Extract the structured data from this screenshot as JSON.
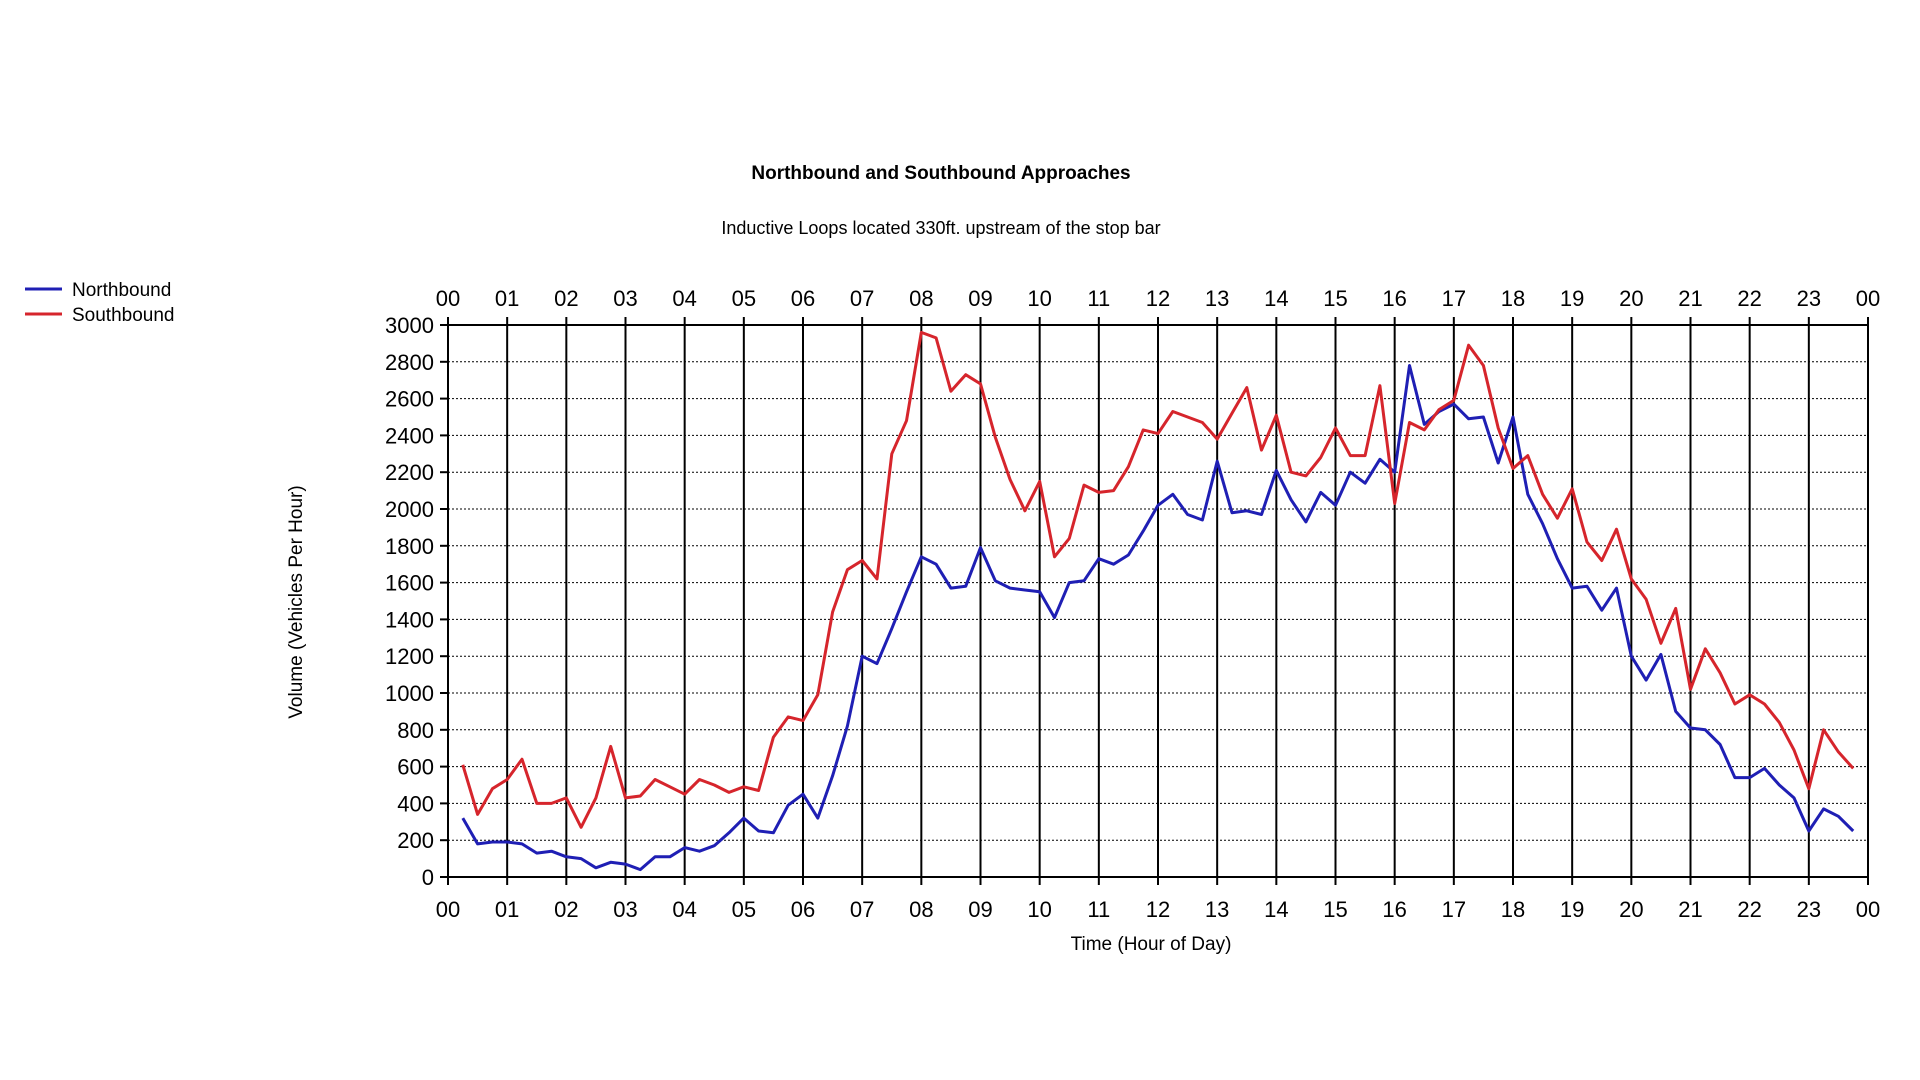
{
  "chart_data": {
    "type": "line",
    "title": "Northbound and Southbound Approaches",
    "subtitle": "Inductive Loops located 330ft. upstream of the stop bar",
    "xlabel": "Time (Hour of Day)",
    "ylabel": "Volume (Vehicles Per Hour)",
    "xlim": [
      0,
      24
    ],
    "ylim": [
      0,
      3000
    ],
    "x_tick_labels": [
      "00",
      "01",
      "02",
      "03",
      "04",
      "05",
      "06",
      "07",
      "08",
      "09",
      "10",
      "11",
      "12",
      "13",
      "14",
      "15",
      "16",
      "17",
      "18",
      "19",
      "20",
      "21",
      "22",
      "23",
      "00"
    ],
    "y_ticks": [
      0,
      200,
      400,
      600,
      800,
      1000,
      1200,
      1400,
      1600,
      1800,
      2000,
      2200,
      2400,
      2600,
      2800,
      3000
    ],
    "grid": true,
    "legend_position": "top-left",
    "colors": {
      "northbound": "#1f1fb4",
      "southbound": "#d6252c"
    },
    "series": [
      {
        "name": "Northbound",
        "x": [
          0.25,
          0.5,
          0.75,
          1,
          1.25,
          1.5,
          1.75,
          2,
          2.25,
          2.5,
          2.75,
          3,
          3.25,
          3.5,
          3.75,
          4,
          4.25,
          4.5,
          4.75,
          5,
          5.25,
          5.5,
          5.75,
          6,
          6.25,
          6.5,
          6.75,
          7,
          7.25,
          7.5,
          7.75,
          8,
          8.25,
          8.5,
          8.75,
          9,
          9.25,
          9.5,
          9.75,
          10,
          10.25,
          10.5,
          10.75,
          11,
          11.25,
          11.5,
          11.75,
          12,
          12.25,
          12.5,
          12.75,
          13,
          13.25,
          13.5,
          13.75,
          14,
          14.25,
          14.5,
          14.75,
          15,
          15.25,
          15.5,
          15.75,
          16,
          16.25,
          16.5,
          16.75,
          17,
          17.25,
          17.5,
          17.75,
          18,
          18.25,
          18.5,
          18.75,
          19,
          19.25,
          19.5,
          19.75,
          20,
          20.25,
          20.5,
          20.75,
          21,
          21.25,
          21.5,
          21.75,
          22,
          22.25,
          22.5,
          22.75,
          23,
          23.25,
          23.5,
          23.75
        ],
        "values": [
          320,
          180,
          190,
          190,
          180,
          130,
          140,
          110,
          100,
          50,
          80,
          70,
          40,
          110,
          110,
          160,
          140,
          170,
          240,
          320,
          250,
          240,
          390,
          450,
          320,
          550,
          820,
          1200,
          1160,
          1350,
          1550,
          1740,
          1700,
          1570,
          1580,
          1790,
          1610,
          1570,
          1560,
          1550,
          1410,
          1600,
          1610,
          1730,
          1700,
          1750,
          1880,
          2020,
          2080,
          1970,
          1940,
          2260,
          1980,
          1990,
          1970,
          2210,
          2050,
          1930,
          2090,
          2020,
          2200,
          2140,
          2270,
          2200,
          2780,
          2460,
          2530,
          2570,
          2490,
          2500,
          2250,
          2500,
          2080,
          1920,
          1730,
          1570,
          1580,
          1450,
          1570,
          1200,
          1070,
          1210,
          900,
          810,
          800,
          720,
          540,
          540,
          590,
          500,
          430,
          250,
          370,
          330,
          250
        ]
      },
      {
        "name": "Southbound",
        "x": [
          0.25,
          0.5,
          0.75,
          1,
          1.25,
          1.5,
          1.75,
          2,
          2.25,
          2.5,
          2.75,
          3,
          3.25,
          3.5,
          3.75,
          4,
          4.25,
          4.5,
          4.75,
          5,
          5.25,
          5.5,
          5.75,
          6,
          6.25,
          6.5,
          6.75,
          7,
          7.25,
          7.5,
          7.75,
          8,
          8.25,
          8.5,
          8.75,
          9,
          9.25,
          9.5,
          9.75,
          10,
          10.25,
          10.5,
          10.75,
          11,
          11.25,
          11.5,
          11.75,
          12,
          12.25,
          12.5,
          12.75,
          13,
          13.25,
          13.5,
          13.75,
          14,
          14.25,
          14.5,
          14.75,
          15,
          15.25,
          15.5,
          15.75,
          16,
          16.25,
          16.5,
          16.75,
          17,
          17.25,
          17.5,
          17.75,
          18,
          18.25,
          18.5,
          18.75,
          19,
          19.25,
          19.5,
          19.75,
          20,
          20.25,
          20.5,
          20.75,
          21,
          21.25,
          21.5,
          21.75,
          22,
          22.25,
          22.5,
          22.75,
          23,
          23.25,
          23.5,
          23.75
        ],
        "values": [
          610,
          340,
          480,
          530,
          640,
          400,
          400,
          430,
          270,
          430,
          710,
          430,
          440,
          530,
          490,
          450,
          530,
          500,
          460,
          490,
          470,
          760,
          870,
          850,
          990,
          1440,
          1670,
          1720,
          1620,
          2300,
          2480,
          2960,
          2930,
          2640,
          2730,
          2680,
          2390,
          2160,
          1990,
          2150,
          1740,
          1840,
          2130,
          2090,
          2100,
          2230,
          2430,
          2410,
          2530,
          2500,
          2470,
          2380,
          2520,
          2660,
          2320,
          2510,
          2200,
          2180,
          2280,
          2440,
          2290,
          2290,
          2670,
          2030,
          2470,
          2430,
          2540,
          2590,
          2890,
          2780,
          2440,
          2220,
          2290,
          2080,
          1950,
          2110,
          1820,
          1720,
          1890,
          1620,
          1510,
          1270,
          1460,
          1020,
          1240,
          1110,
          940,
          990,
          940,
          840,
          690,
          480,
          800,
          680,
          590
        ]
      }
    ]
  }
}
